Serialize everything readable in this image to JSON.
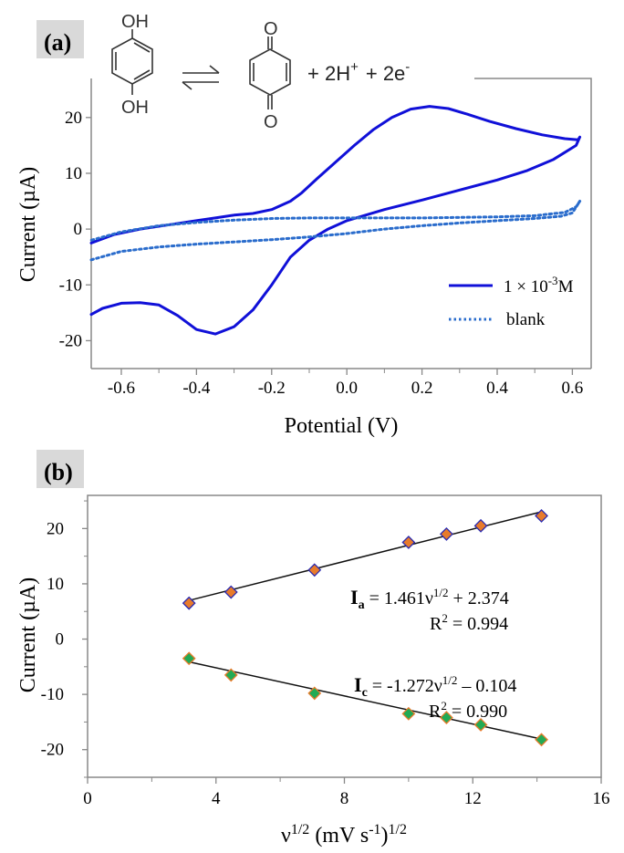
{
  "chart_data": [
    {
      "type": "line",
      "panel_label": "(a)",
      "xlabel": "Potential (V)",
      "ylabel": "Current (µA)",
      "xlim": [
        -0.68,
        0.65
      ],
      "ylim": [
        -25,
        27
      ],
      "xticks": [
        -0.6,
        -0.4,
        -0.2,
        0.0,
        0.2,
        0.4,
        0.6
      ],
      "xtick_labels": [
        "-0.6",
        "-0.4",
        "-0.2",
        "0.0",
        "0.2",
        "0.4",
        "0.6"
      ],
      "yticks": [
        20,
        10,
        0,
        -10,
        -20
      ],
      "ytick_labels": [
        "20",
        "10",
        "0",
        "-10",
        "-20"
      ],
      "grid": false,
      "legend": {
        "placement": "bottom-right",
        "entries": [
          {
            "label_main": "1 × 10",
            "label_sup": "-3",
            "label_end": "M",
            "style": "solid"
          },
          {
            "label_main": "blank",
            "style": "dotted"
          }
        ]
      },
      "color": "#1010d8",
      "blank_color": "#2a6ccc",
      "reaction": {
        "reactant_groups": [
          "OH",
          "OH"
        ],
        "product_groups": [
          "O",
          "O"
        ],
        "products_text": [
          "+ 2H",
          "+",
          "+ 2e",
          "-"
        ]
      },
      "series": [
        {
          "name": "1 × 10-3M",
          "style": "solid",
          "x": [
            -0.68,
            -0.62,
            -0.55,
            -0.48,
            -0.4,
            -0.35,
            -0.3,
            -0.25,
            -0.2,
            -0.15,
            -0.12,
            -0.08,
            -0.03,
            0.02,
            0.07,
            0.12,
            0.17,
            0.22,
            0.27,
            0.32,
            0.38,
            0.45,
            0.52,
            0.58,
            0.615,
            0.62,
            0.61,
            0.55,
            0.48,
            0.4,
            0.3,
            0.2,
            0.1,
            0.0,
            -0.05,
            -0.1,
            -0.15,
            -0.2,
            -0.25,
            -0.3,
            -0.35,
            -0.4,
            -0.45,
            -0.5,
            -0.55,
            -0.6,
            -0.65,
            -0.68
          ],
          "y": [
            -2.5,
            -1.0,
            0.0,
            0.7,
            1.5,
            2.0,
            2.5,
            2.8,
            3.5,
            5.0,
            6.5,
            9.0,
            12.0,
            15.0,
            17.8,
            20.0,
            21.5,
            22.0,
            21.6,
            20.6,
            19.3,
            18.0,
            16.9,
            16.2,
            16.0,
            16.5,
            15.0,
            12.5,
            10.5,
            8.8,
            7.0,
            5.2,
            3.5,
            1.5,
            0.0,
            -2.0,
            -5.0,
            -10.0,
            -14.5,
            -17.5,
            -18.8,
            -18.0,
            -15.5,
            -13.6,
            -13.2,
            -13.3,
            -14.2,
            -15.3
          ]
        },
        {
          "name": "blank",
          "style": "dotted",
          "x": [
            -0.68,
            -0.6,
            -0.5,
            -0.4,
            -0.3,
            -0.2,
            -0.1,
            0.0,
            0.1,
            0.2,
            0.3,
            0.4,
            0.5,
            0.57,
            0.6,
            0.62,
            0.61,
            0.58,
            0.5,
            0.4,
            0.3,
            0.2,
            0.1,
            0.0,
            -0.1,
            -0.2,
            -0.3,
            -0.4,
            -0.5,
            -0.6,
            -0.68
          ],
          "y": [
            -5.5,
            -4.0,
            -3.2,
            -2.7,
            -2.3,
            -1.9,
            -1.4,
            -0.8,
            0.0,
            0.6,
            1.1,
            1.5,
            1.9,
            2.3,
            2.9,
            5.0,
            4.0,
            3.0,
            2.4,
            2.2,
            2.1,
            2.0,
            2.0,
            2.0,
            2.0,
            1.9,
            1.6,
            1.2,
            0.6,
            -0.5,
            -2.0
          ]
        }
      ]
    },
    {
      "type": "scatter",
      "panel_label": "(b)",
      "xlabel_main": "ν",
      "xlabel_sup1": "1/2",
      "xlabel_mid": " (mV s",
      "xlabel_sup2": "-1",
      "xlabel_end": ")",
      "xlabel_sup3": "1/2",
      "ylabel": "Current (µA)",
      "xlim": [
        0,
        16
      ],
      "ylim": [
        -25,
        26
      ],
      "xticks": [
        0,
        4,
        8,
        12,
        16
      ],
      "xtick_labels": [
        "0",
        "4",
        "8",
        "12",
        "16"
      ],
      "yticks": [
        20,
        10,
        0,
        -10,
        -20
      ],
      "ytick_labels": [
        "20",
        "10",
        "0",
        "-10",
        "-20"
      ],
      "grid": false,
      "series": [
        {
          "name": "Ia",
          "marker": "diamond",
          "fill": "#e87b2b",
          "stroke": "#2a2ab0",
          "x": [
            3.16,
            4.47,
            7.07,
            10.0,
            11.18,
            12.25,
            14.14
          ],
          "y": [
            6.5,
            8.5,
            12.5,
            17.5,
            19.0,
            20.5,
            22.3
          ],
          "fit": {
            "slope": 1.461,
            "intercept": 2.374
          }
        },
        {
          "name": "Ic",
          "marker": "diamond",
          "fill": "#22aa55",
          "stroke": "#e87b2b",
          "x": [
            3.16,
            4.47,
            7.07,
            10.0,
            11.18,
            12.25,
            14.14
          ],
          "y": [
            -3.5,
            -6.5,
            -9.8,
            -13.5,
            -14.2,
            -15.5,
            -18.2
          ],
          "fit": {
            "slope": -1.272,
            "intercept": -0.104
          }
        }
      ],
      "annotations": {
        "ia_label": "I",
        "ia_sub": "a",
        "ia_eq_a": " = 1.461ν",
        "ia_eq_sup": "1/2",
        "ia_eq_b": " + 2.374",
        "ia_r2_a": "R",
        "ia_r2_sup": "2",
        "ia_r2_b": " = 0.994",
        "ic_label": "I",
        "ic_sub": "c",
        "ic_eq_a": " = -1.272ν",
        "ic_eq_sup": "1/2",
        "ic_eq_b": " – 0.104",
        "ic_r2_a": "R",
        "ic_r2_sup": "2",
        "ic_r2_b": " = 0.990"
      }
    }
  ]
}
